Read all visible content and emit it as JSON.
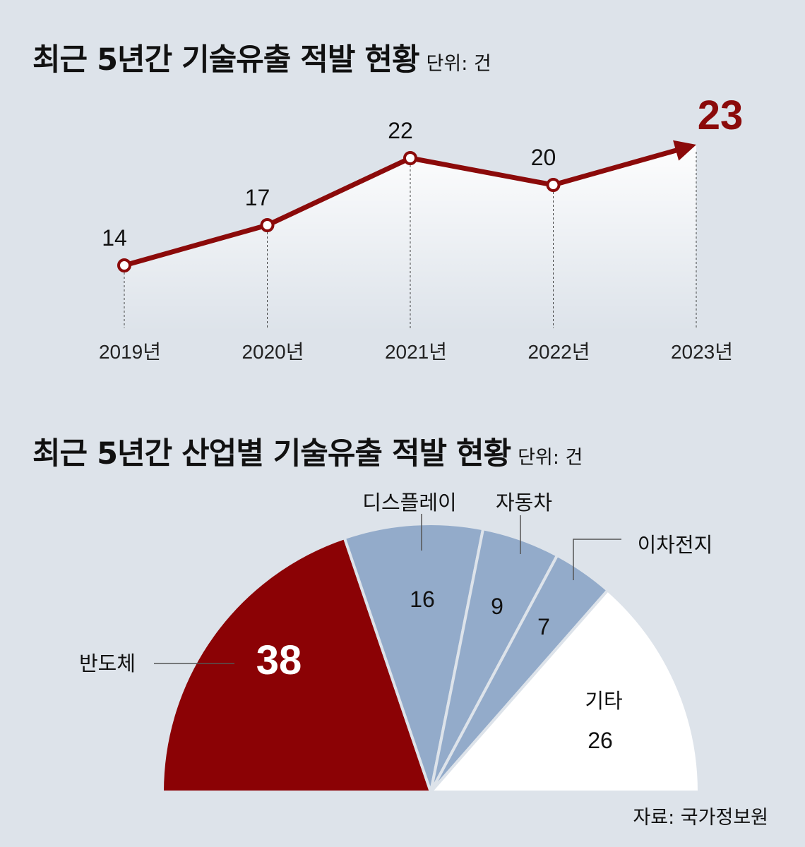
{
  "chart_data": [
    {
      "type": "line",
      "title": "최근 5년간 기술유출 적발 현황",
      "unit": "단위: 건",
      "x": [
        "2019년",
        "2020년",
        "2021년",
        "2022년",
        "2023년"
      ],
      "values": [
        14,
        17,
        22,
        20,
        23
      ],
      "colors": {
        "line": "#8b0a0a"
      }
    },
    {
      "type": "pie",
      "shape": "half-pie",
      "title": "최근 5년간 산업별 기술유출 적발 현황",
      "unit": "단위: 건",
      "slices": [
        {
          "label": "반도체",
          "value": 38,
          "color": "#8b0205"
        },
        {
          "label": "디스플레이",
          "value": 16,
          "color": "#93abca"
        },
        {
          "label": "자동차",
          "value": 9,
          "color": "#93abca"
        },
        {
          "label": "이차전지",
          "value": 7,
          "color": "#93abca"
        },
        {
          "label": "기타",
          "value": 26,
          "color": "#ffffff"
        }
      ]
    }
  ],
  "source": "자료: 국가정보원"
}
